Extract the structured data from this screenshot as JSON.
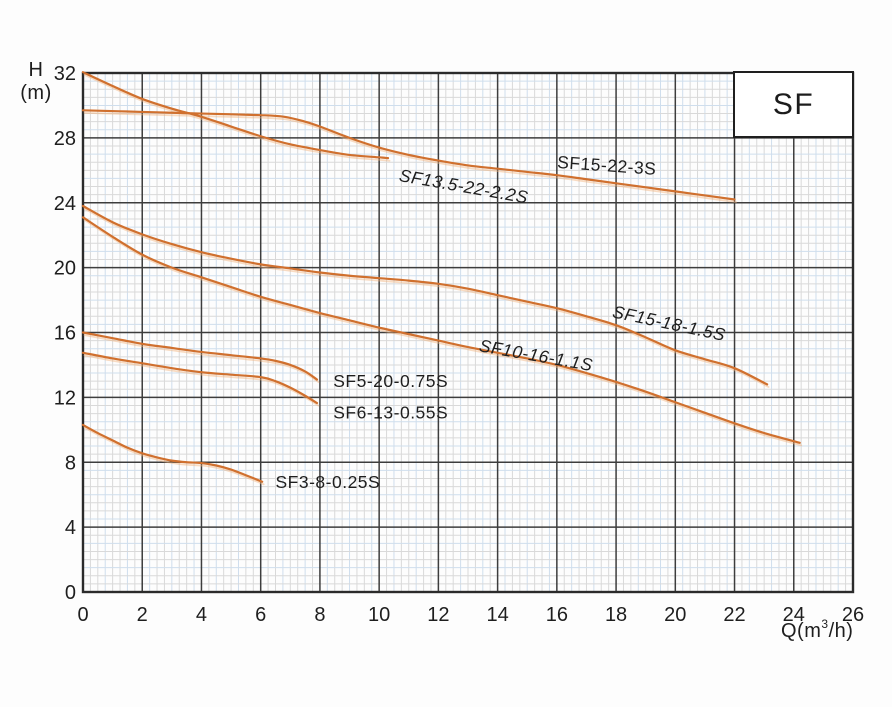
{
  "title_box": {
    "label": "SF"
  },
  "axes": {
    "y": {
      "title_line1": "H",
      "title_line2": "(m)",
      "ticks": [
        0,
        4,
        8,
        12,
        16,
        20,
        24,
        28,
        32
      ],
      "min": 0,
      "max": 32
    },
    "x": {
      "title": "Q(m³/h)",
      "title_prefix": "Q(m",
      "title_sup": "3",
      "title_suffix": "/h)",
      "ticks": [
        0,
        2,
        4,
        6,
        8,
        10,
        12,
        14,
        16,
        18,
        20,
        22,
        24,
        26
      ],
      "min": 0,
      "max": 26
    }
  },
  "colors": {
    "curve": "#d0702e",
    "curve_glow": "#f2b27c",
    "grid_major": "#3d3d3d",
    "grid_minor_gray": "#d9d9d9",
    "grid_minor_blue": "#cfdeed",
    "plot_border": "#2b2b2b",
    "text": "#1e1e1e"
  },
  "chart_data": {
    "type": "line",
    "title": "SF pump performance curves",
    "xlabel": "Q(m³/h)",
    "ylabel": "H (m)",
    "xlim": [
      0,
      26
    ],
    "ylim": [
      0,
      32
    ],
    "grid": {
      "major_x": 2,
      "major_y": 4,
      "minor_x": 0.25,
      "minor_y": 0.5
    },
    "legend_position": "inline-labels",
    "series": [
      {
        "name": "SF13.5-22-2.2S",
        "label": {
          "x": 10.65,
          "y": 25.35,
          "angle": 10,
          "italic": true
        },
        "points": [
          [
            0,
            32.05
          ],
          [
            1,
            31.2
          ],
          [
            2,
            30.4
          ],
          [
            3,
            29.8
          ],
          [
            4,
            29.3
          ],
          [
            5,
            28.7
          ],
          [
            6,
            28.1
          ],
          [
            7,
            27.6
          ],
          [
            8,
            27.25
          ],
          [
            9,
            26.95
          ],
          [
            10,
            26.8
          ],
          [
            10.3,
            26.75
          ]
        ]
      },
      {
        "name": "SF15-22-3S",
        "label": {
          "x": 16.0,
          "y": 26.15,
          "angle": 4,
          "italic": false
        },
        "points": [
          [
            0,
            29.7
          ],
          [
            2,
            29.6
          ],
          [
            4,
            29.5
          ],
          [
            6,
            29.4
          ],
          [
            6.8,
            29.3
          ],
          [
            7.5,
            29.0
          ],
          [
            8,
            28.7
          ],
          [
            9,
            28.0
          ],
          [
            10,
            27.4
          ],
          [
            11,
            26.95
          ],
          [
            12,
            26.6
          ],
          [
            13,
            26.3
          ],
          [
            14,
            26.1
          ],
          [
            15,
            25.9
          ],
          [
            16,
            25.7
          ],
          [
            17,
            25.45
          ],
          [
            18,
            25.2
          ],
          [
            19,
            24.95
          ],
          [
            20,
            24.7
          ],
          [
            21,
            24.45
          ],
          [
            22,
            24.2
          ]
        ]
      },
      {
        "name": "SF15-18-1.5S",
        "label": {
          "x": 17.85,
          "y": 16.95,
          "angle": 12,
          "italic": true
        },
        "points": [
          [
            0,
            23.8
          ],
          [
            1,
            22.8
          ],
          [
            2,
            22.05
          ],
          [
            3,
            21.45
          ],
          [
            4,
            20.95
          ],
          [
            5,
            20.55
          ],
          [
            6,
            20.2
          ],
          [
            7,
            19.95
          ],
          [
            8,
            19.7
          ],
          [
            9,
            19.5
          ],
          [
            10,
            19.35
          ],
          [
            11,
            19.2
          ],
          [
            12,
            19.0
          ],
          [
            13,
            18.7
          ],
          [
            14,
            18.3
          ],
          [
            15,
            17.9
          ],
          [
            16,
            17.5
          ],
          [
            17,
            17.0
          ],
          [
            18,
            16.45
          ],
          [
            19,
            15.7
          ],
          [
            20,
            14.9
          ],
          [
            21,
            14.35
          ],
          [
            22,
            13.8
          ],
          [
            23.1,
            12.8
          ]
        ]
      },
      {
        "name": "SF10-16-1.1S",
        "label": {
          "x": 13.35,
          "y": 14.85,
          "angle": 10,
          "italic": true
        },
        "points": [
          [
            0,
            23.1
          ],
          [
            1,
            21.9
          ],
          [
            2,
            20.8
          ],
          [
            3,
            20.0
          ],
          [
            4,
            19.4
          ],
          [
            5,
            18.8
          ],
          [
            6,
            18.2
          ],
          [
            7,
            17.7
          ],
          [
            8,
            17.2
          ],
          [
            9,
            16.75
          ],
          [
            10,
            16.3
          ],
          [
            11,
            15.9
          ],
          [
            12,
            15.5
          ],
          [
            13,
            15.1
          ],
          [
            14,
            14.75
          ],
          [
            15,
            14.4
          ],
          [
            16,
            14.0
          ],
          [
            17,
            13.5
          ],
          [
            18,
            12.95
          ],
          [
            19,
            12.35
          ],
          [
            20,
            11.7
          ],
          [
            21,
            11.05
          ],
          [
            22,
            10.4
          ],
          [
            23,
            9.8
          ],
          [
            24.2,
            9.2
          ]
        ]
      },
      {
        "name": "SF5-20-0.75S",
        "label": {
          "x": 8.45,
          "y": 12.65,
          "angle": 0,
          "italic": false
        },
        "points": [
          [
            0,
            16.0
          ],
          [
            1,
            15.65
          ],
          [
            2,
            15.3
          ],
          [
            3,
            15.05
          ],
          [
            4,
            14.8
          ],
          [
            5,
            14.6
          ],
          [
            6,
            14.4
          ],
          [
            6.5,
            14.25
          ],
          [
            7,
            14.0
          ],
          [
            7.5,
            13.6
          ],
          [
            7.9,
            13.1
          ]
        ]
      },
      {
        "name": "SF6-13-0.55S",
        "label": {
          "x": 8.45,
          "y": 10.7,
          "angle": 0,
          "italic": false
        },
        "points": [
          [
            0,
            14.75
          ],
          [
            1,
            14.4
          ],
          [
            2,
            14.1
          ],
          [
            3,
            13.8
          ],
          [
            4,
            13.55
          ],
          [
            5,
            13.4
          ],
          [
            6,
            13.25
          ],
          [
            6.5,
            13.0
          ],
          [
            7,
            12.6
          ],
          [
            7.5,
            12.1
          ],
          [
            7.9,
            11.65
          ]
        ]
      },
      {
        "name": "SF3-8-0.25S",
        "label": {
          "x": 6.5,
          "y": 6.4,
          "angle": 0,
          "italic": false
        },
        "points": [
          [
            0,
            10.3
          ],
          [
            0.5,
            9.8
          ],
          [
            1,
            9.35
          ],
          [
            1.5,
            8.9
          ],
          [
            2,
            8.55
          ],
          [
            2.5,
            8.3
          ],
          [
            3,
            8.1
          ],
          [
            3.5,
            8.0
          ],
          [
            4,
            7.95
          ],
          [
            4.5,
            7.8
          ],
          [
            5,
            7.55
          ],
          [
            5.5,
            7.2
          ],
          [
            6.05,
            6.8
          ]
        ]
      }
    ]
  }
}
